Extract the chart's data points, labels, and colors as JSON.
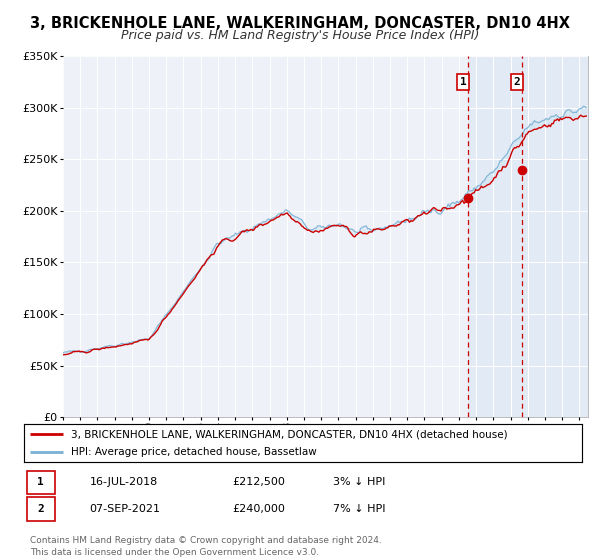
{
  "title": "3, BRICKENHOLE LANE, WALKERINGHAM, DONCASTER, DN10 4HX",
  "subtitle": "Price paid vs. HM Land Registry's House Price Index (HPI)",
  "ylim": [
    0,
    350000
  ],
  "yticks": [
    0,
    50000,
    100000,
    150000,
    200000,
    250000,
    300000,
    350000
  ],
  "ytick_labels": [
    "£0",
    "£50K",
    "£100K",
    "£150K",
    "£200K",
    "£250K",
    "£300K",
    "£350K"
  ],
  "xlim_start": 1995.0,
  "xlim_end": 2025.5,
  "hpi_color": "#7ab0d4",
  "price_color": "#cc0000",
  "marker_color": "#cc0000",
  "dashed_line_color": "#cc0000",
  "fill_color": "#c8dff0",
  "background_color": "#eef2f8",
  "grid_color": "#ffffff",
  "event1_x": 2018.54,
  "event1_y": 212500,
  "event1_label": "16-JUL-2018",
  "event1_price": "£212,500",
  "event1_note": "3% ↓ HPI",
  "event2_x": 2021.68,
  "event2_y": 240000,
  "event2_label": "07-SEP-2021",
  "event2_price": "£240,000",
  "event2_note": "7% ↓ HPI",
  "legend_red_label": "3, BRICKENHOLE LANE, WALKERINGHAM, DONCASTER, DN10 4HX (detached house)",
  "legend_blue_label": "HPI: Average price, detached house, Bassetlaw",
  "footer_line1": "Contains HM Land Registry data © Crown copyright and database right 2024.",
  "footer_line2": "This data is licensed under the Open Government Licence v3.0.",
  "title_fontsize": 10.5,
  "subtitle_fontsize": 9.0
}
